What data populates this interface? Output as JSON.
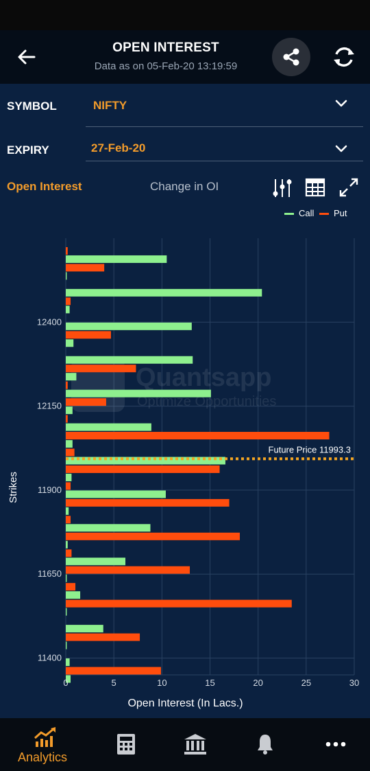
{
  "header": {
    "title": "OPEN INTEREST",
    "subtitle": "Data as on 05-Feb-20 13:19:59"
  },
  "symbol": {
    "label": "SYMBOL",
    "value": "NIFTY"
  },
  "expiry": {
    "label": "EXPIRY",
    "value": "27-Feb-20"
  },
  "tabs": {
    "active": "Open Interest",
    "inactive": "Change in OI"
  },
  "legend": {
    "call": "Call",
    "put": "Put"
  },
  "colors": {
    "call": "#8ef08e",
    "put": "#ff4d0d",
    "future": "#f5a623",
    "accent": "#f39c2b"
  },
  "chart_data": {
    "type": "bar",
    "orientation": "horizontal",
    "xlabel": "Open Interest (In Lacs.)",
    "ylabel": "Strikes",
    "xlim": [
      0,
      30
    ],
    "xticks": [
      0,
      5,
      10,
      15,
      20,
      25,
      30
    ],
    "ylim": [
      11350,
      12650
    ],
    "ytick_labels": [
      "12400",
      "12150",
      "11900",
      "11650",
      "11400"
    ],
    "ytick_values": [
      12400,
      12150,
      11900,
      11650,
      11400
    ],
    "strikes": [
      12600,
      12550,
      12500,
      12450,
      12400,
      12350,
      12300,
      12250,
      12200,
      12150,
      12100,
      12050,
      12000,
      11950,
      11900,
      11850,
      11800,
      11750,
      11700,
      11650,
      11600,
      11550,
      11500,
      11450,
      11400,
      11350
    ],
    "series": [
      {
        "name": "Call",
        "values": [
          10.5,
          0.1,
          20.4,
          0.4,
          13.1,
          0.8,
          13.2,
          1.1,
          15.1,
          0.7,
          8.9,
          0.7,
          16.6,
          0.6,
          10.4,
          0.3,
          8.8,
          0.2,
          6.2,
          0.1,
          1.5,
          0.1,
          3.9,
          0.1,
          0.4,
          0.5
        ]
      },
      {
        "name": "Put",
        "values": [
          0.2,
          4.0,
          0.0,
          0.5,
          0.0,
          4.7,
          0.0,
          7.3,
          0.2,
          4.2,
          0.2,
          27.4,
          0.9,
          16.0,
          0.5,
          17.0,
          0.5,
          18.1,
          0.6,
          12.9,
          1.0,
          23.5,
          0.0,
          7.7,
          0.0,
          9.9
        ]
      }
    ],
    "future_price": {
      "label": "Future Price",
      "value": 11993.3,
      "value_text": "11993.3"
    }
  },
  "watermark": {
    "name": "Quantsapp",
    "tagline": "Optimize Opportunities"
  },
  "nav": {
    "analytics_label": "Analytics"
  },
  "icons": [
    "back-arrow-icon",
    "share-icon",
    "refresh-icon",
    "chevron-down-icon",
    "filter-sliders-icon",
    "table-grid-icon",
    "expand-icon",
    "chart-trend-icon",
    "calculator-icon",
    "bank-icon",
    "bell-icon",
    "more-dots-icon"
  ]
}
